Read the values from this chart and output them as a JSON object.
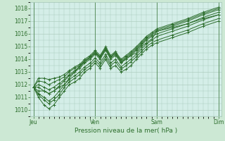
{
  "xlabel": "Pression niveau de la mer( hPa )",
  "background_color": "#cce8d4",
  "plot_bg_color": "#d4eee8",
  "grid_color": "#a8c8b8",
  "line_color": "#2d6e2d",
  "ylim": [
    1009.5,
    1018.5
  ],
  "yticks": [
    1010,
    1011,
    1012,
    1013,
    1014,
    1015,
    1016,
    1017,
    1018
  ],
  "day_labels": [
    "Jeu",
    "Ven",
    "Sam",
    "Dim"
  ],
  "day_positions": [
    0,
    1,
    2,
    3
  ],
  "series": [
    {
      "x": [
        0.0,
        0.08,
        0.17,
        0.25,
        0.33,
        0.42,
        0.5,
        0.58,
        0.67,
        0.75,
        0.83,
        0.92,
        1.0,
        1.08,
        1.17,
        1.25,
        1.33,
        1.42,
        1.5,
        1.58,
        1.67,
        1.75,
        1.83,
        1.92,
        2.0,
        2.25,
        2.5,
        2.75,
        3.0
      ],
      "y": [
        1011.8,
        1011.5,
        1011.5,
        1011.3,
        1011.5,
        1011.8,
        1012.0,
        1012.5,
        1013.0,
        1013.5,
        1013.8,
        1014.2,
        1014.5,
        1014.2,
        1014.8,
        1014.2,
        1014.5,
        1013.8,
        1014.0,
        1014.3,
        1014.5,
        1015.0,
        1015.3,
        1015.6,
        1016.2,
        1016.5,
        1016.8,
        1017.2,
        1017.5
      ]
    },
    {
      "x": [
        0.0,
        0.08,
        0.17,
        0.25,
        0.33,
        0.42,
        0.5,
        0.58,
        0.67,
        0.75,
        0.83,
        0.92,
        1.0,
        1.08,
        1.17,
        1.25,
        1.33,
        1.42,
        1.5,
        1.58,
        1.67,
        1.75,
        1.83,
        1.92,
        2.0,
        2.25,
        2.5,
        2.75,
        3.0
      ],
      "y": [
        1011.8,
        1011.2,
        1010.8,
        1010.5,
        1010.8,
        1011.2,
        1011.8,
        1012.2,
        1012.5,
        1012.8,
        1013.2,
        1013.5,
        1013.9,
        1013.5,
        1014.2,
        1013.5,
        1013.8,
        1013.2,
        1013.5,
        1013.8,
        1014.2,
        1014.6,
        1015.0,
        1015.3,
        1015.5,
        1015.9,
        1016.3,
        1016.8,
        1017.2
      ]
    },
    {
      "x": [
        0.0,
        0.08,
        0.17,
        0.25,
        0.33,
        0.42,
        0.5,
        0.58,
        0.67,
        0.75,
        0.83,
        0.92,
        1.0,
        1.08,
        1.17,
        1.25,
        1.33,
        1.42,
        1.5,
        1.58,
        1.67,
        1.75,
        1.83,
        1.92,
        2.0,
        2.25,
        2.5,
        2.75,
        3.0
      ],
      "y": [
        1011.8,
        1011.0,
        1010.4,
        1010.1,
        1010.4,
        1011.0,
        1011.5,
        1012.0,
        1012.2,
        1012.5,
        1013.0,
        1013.3,
        1013.7,
        1013.3,
        1014.0,
        1013.3,
        1013.5,
        1013.0,
        1013.2,
        1013.5,
        1014.0,
        1014.4,
        1014.8,
        1015.1,
        1015.3,
        1015.7,
        1016.1,
        1016.6,
        1017.0
      ]
    },
    {
      "x": [
        0.0,
        0.08,
        0.17,
        0.25,
        0.33,
        0.42,
        0.5,
        0.58,
        0.67,
        0.75,
        0.83,
        0.92,
        1.0,
        1.08,
        1.17,
        1.25,
        1.33,
        1.42,
        1.5,
        1.58,
        1.67,
        1.75,
        1.83,
        1.92,
        2.0,
        2.25,
        2.5,
        2.75,
        3.0
      ],
      "y": [
        1011.8,
        1011.3,
        1011.0,
        1010.7,
        1011.0,
        1011.5,
        1012.0,
        1012.4,
        1012.7,
        1013.0,
        1013.4,
        1013.7,
        1014.1,
        1013.7,
        1014.4,
        1013.7,
        1014.0,
        1013.4,
        1013.7,
        1014.0,
        1014.4,
        1014.8,
        1015.2,
        1015.5,
        1015.8,
        1016.2,
        1016.6,
        1017.1,
        1017.5
      ]
    },
    {
      "x": [
        0.0,
        0.08,
        0.17,
        0.25,
        0.33,
        0.42,
        0.5,
        0.58,
        0.67,
        0.75,
        0.83,
        0.92,
        1.0,
        1.08,
        1.17,
        1.25,
        1.33,
        1.42,
        1.5,
        1.58,
        1.67,
        1.75,
        1.83,
        1.92,
        2.0,
        2.25,
        2.5,
        2.75,
        3.0
      ],
      "y": [
        1011.8,
        1011.8,
        1011.5,
        1011.3,
        1011.5,
        1011.9,
        1012.3,
        1012.7,
        1013.0,
        1013.3,
        1013.7,
        1014.0,
        1014.4,
        1014.0,
        1014.7,
        1014.0,
        1014.3,
        1013.7,
        1014.0,
        1014.3,
        1014.7,
        1015.1,
        1015.5,
        1015.8,
        1016.0,
        1016.4,
        1016.8,
        1017.3,
        1017.7
      ]
    },
    {
      "x": [
        0.0,
        0.08,
        0.17,
        0.25,
        0.33,
        0.42,
        0.5,
        0.58,
        0.67,
        0.75,
        0.83,
        0.92,
        1.0,
        1.08,
        1.17,
        1.25,
        1.33,
        1.42,
        1.5,
        1.58,
        1.67,
        1.75,
        1.83,
        1.92,
        2.0,
        2.25,
        2.5,
        2.75,
        3.0
      ],
      "y": [
        1011.8,
        1012.0,
        1011.8,
        1011.6,
        1011.8,
        1012.1,
        1012.4,
        1012.8,
        1013.1,
        1013.4,
        1013.8,
        1014.1,
        1014.5,
        1014.1,
        1014.8,
        1014.1,
        1014.4,
        1013.8,
        1014.1,
        1014.4,
        1014.8,
        1015.2,
        1015.6,
        1015.9,
        1016.2,
        1016.6,
        1017.0,
        1017.5,
        1017.9
      ]
    },
    {
      "x": [
        0.0,
        0.08,
        0.17,
        0.25,
        0.33,
        0.42,
        0.5,
        0.58,
        0.67,
        0.75,
        0.83,
        0.92,
        1.0,
        1.08,
        1.17,
        1.25,
        1.33,
        1.42,
        1.5,
        1.58,
        1.67,
        1.75,
        1.83,
        1.92,
        2.0,
        2.25,
        2.5,
        2.75,
        3.0
      ],
      "y": [
        1011.8,
        1012.3,
        1012.2,
        1012.0,
        1012.2,
        1012.4,
        1012.6,
        1013.0,
        1013.3,
        1013.5,
        1013.9,
        1014.2,
        1014.6,
        1014.2,
        1014.9,
        1014.2,
        1014.5,
        1013.9,
        1014.2,
        1014.5,
        1014.9,
        1015.3,
        1015.7,
        1016.0,
        1016.3,
        1016.7,
        1017.1,
        1017.6,
        1018.0
      ]
    },
    {
      "x": [
        0.0,
        0.08,
        0.17,
        0.25,
        0.33,
        0.42,
        0.5,
        0.58,
        0.67,
        0.75,
        0.83,
        0.92,
        1.0,
        1.08,
        1.17,
        1.25,
        1.33,
        1.42,
        1.5,
        1.58,
        1.67,
        1.75,
        1.83,
        1.92,
        2.0,
        2.25,
        2.5,
        2.75,
        3.0
      ],
      "y": [
        1011.8,
        1012.5,
        1012.5,
        1012.4,
        1012.5,
        1012.6,
        1012.8,
        1013.1,
        1013.4,
        1013.6,
        1014.0,
        1014.3,
        1014.7,
        1014.3,
        1015.0,
        1014.3,
        1014.6,
        1014.0,
        1014.3,
        1014.6,
        1015.0,
        1015.4,
        1015.8,
        1016.1,
        1016.4,
        1016.8,
        1017.2,
        1017.7,
        1018.1
      ]
    }
  ]
}
